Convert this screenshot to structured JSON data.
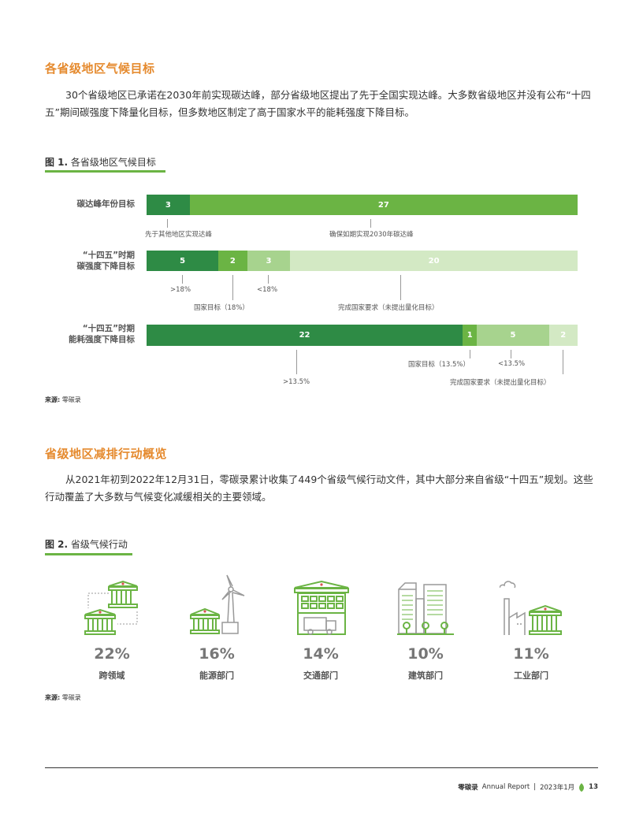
{
  "section1": {
    "title": "各省级地区气候目标",
    "paragraph": "30个省级地区已承诺在2030年前实现碳达峰，部分省级地区提出了先于全国实现达峰。大多数省级地区并没有公布“十四五”期间碳强度下降量化目标，但多数地区制定了高于国家水平的能耗强度下降目标。"
  },
  "figure1": {
    "label": "图 1.",
    "title": "各省级地区气候目标",
    "source_label": "来源:",
    "source": "零碳录",
    "rows": [
      {
        "label_lines": [
          "碳达峰年份目标"
        ],
        "segments": [
          {
            "value": 3,
            "color": "#2e8b45"
          },
          {
            "value": 27,
            "color": "#6bb444"
          }
        ],
        "annotations": [
          "先于其他地区实现达峰",
          "确保如期实现2030年碳达峰"
        ]
      },
      {
        "label_lines": [
          "“十四五”时期",
          "碳强度下降目标"
        ],
        "segments": [
          {
            "value": 5,
            "color": "#2e8b45"
          },
          {
            "value": 2,
            "color": "#6bb444"
          },
          {
            "value": 3,
            "color": "#a7d38e"
          },
          {
            "value": 20,
            "color": "#d3e9c4"
          }
        ],
        "annotations": [
          ">18%",
          "国家目标（18%）",
          "<18%",
          "完成国家要求（未提出量化目标）"
        ]
      },
      {
        "label_lines": [
          "“十四五”时期",
          "能耗强度下降目标"
        ],
        "segments": [
          {
            "value": 22,
            "color": "#2e8b45"
          },
          {
            "value": 1,
            "color": "#6bb444"
          },
          {
            "value": 5,
            "color": "#a7d38e"
          },
          {
            "value": 2,
            "color": "#d3e9c4"
          }
        ],
        "annotations": [
          ">13.5%",
          "国家目标（13.5%）",
          "<13.5%",
          "完成国家要求（未提出量化目标）"
        ]
      }
    ]
  },
  "section2": {
    "title": "省级地区减排行动概览",
    "paragraph": "从2021年初到2022年12月31日，零碳录累计收集了449个省级气候行动文件，其中大部分来自省级“十四五”规划。这些行动覆盖了大多数与气候变化减缓相关的主要领域。"
  },
  "figure2": {
    "label": "图 2.",
    "title": "省级气候行动",
    "source_label": "来源:",
    "source": "零碳录",
    "items": [
      {
        "icon": "cross-domain-icon",
        "percent": "22%",
        "label": "跨领域"
      },
      {
        "icon": "energy-icon",
        "percent": "16%",
        "label": "能源部门"
      },
      {
        "icon": "transport-icon",
        "percent": "14%",
        "label": "交通部门"
      },
      {
        "icon": "building-icon",
        "percent": "10%",
        "label": "建筑部门"
      },
      {
        "icon": "industry-icon",
        "percent": "11%",
        "label": "工业部门"
      }
    ]
  },
  "footer": {
    "brand": "零碳录",
    "report": "Annual Report",
    "date": "2023年1月",
    "page": "13"
  },
  "colors": {
    "accent_orange": "#e58a2e",
    "green_dark": "#2e8b45",
    "green": "#6bb444",
    "green_light": "#a7d38e",
    "green_pale": "#d3e9c4"
  }
}
